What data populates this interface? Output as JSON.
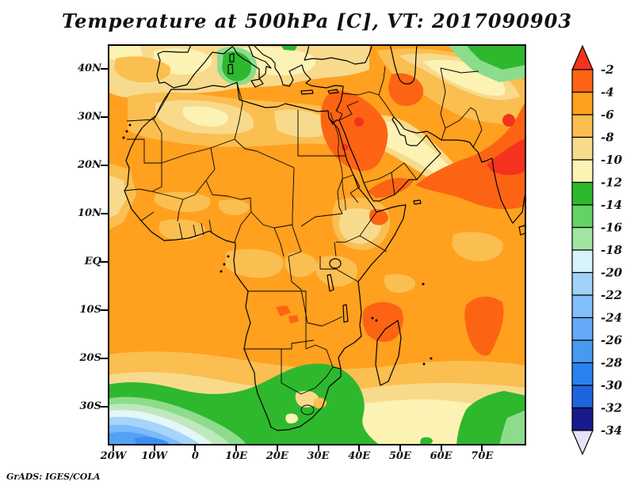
{
  "title": "Temperature at 500hPa [C], VT: 2017090903",
  "credit": "GrADS: IGES/COLA",
  "map": {
    "y_tick_labels": [
      "40N",
      "30N",
      "20N",
      "10N",
      "EQ",
      "10S",
      "20S",
      "30S"
    ],
    "x_tick_labels": [
      "20W",
      "10W",
      "0",
      "10E",
      "20E",
      "30E",
      "40E",
      "50E",
      "60E",
      "70E"
    ]
  },
  "colorbar": {
    "tick_labels": [
      "-2",
      "-4",
      "-6",
      "-8",
      "-10",
      "-12",
      "-14",
      "-16",
      "-18",
      "-20",
      "-22",
      "-24",
      "-26",
      "-28",
      "-30",
      "-32",
      "-34"
    ],
    "top_arrow_color": "#F5321E",
    "bottom_arrow_color": "#E6E2F8",
    "segment_colors": [
      "#FC6414",
      "#FFA01E",
      "#FBBE50",
      "#F8DA8C",
      "#FCF2B4",
      "#2EB82E",
      "#64D264",
      "#A0E6A0",
      "#D8F2FA",
      "#A0D2FA",
      "#82BEFA",
      "#64AAF8",
      "#469BF0",
      "#2882F0",
      "#1E64DC",
      "#1A1A8C"
    ]
  },
  "chart_data": {
    "type": "heatmap",
    "title": "Temperature at 500hPa [C], VT: 2017090903",
    "variable": "Temperature at 500hPa",
    "units": "C",
    "valid_time": "2017090903",
    "region": "Africa, Middle East, southern Europe, Arabian Sea / India and surrounding oceans",
    "x_axis": {
      "label": "longitude",
      "ticks": [
        "20W",
        "10W",
        "0",
        "10E",
        "20E",
        "30E",
        "40E",
        "50E",
        "60E",
        "70E"
      ],
      "range_deg": [
        -21,
        81
      ]
    },
    "y_axis": {
      "label": "latitude",
      "ticks": [
        "40N",
        "30N",
        "20N",
        "10N",
        "EQ",
        "10S",
        "20S",
        "30S"
      ],
      "range_deg": [
        -38,
        45
      ]
    },
    "legend_position": "right",
    "grid": false,
    "contour_interval": 2,
    "levels_c": [
      -2,
      -4,
      -6,
      -8,
      -10,
      -12,
      -14,
      -16,
      -18,
      -20,
      -22,
      -24,
      -26,
      -28,
      -30,
      -32,
      -34
    ],
    "palette": [
      {
        "range": "> -2",
        "color": "#F5321E"
      },
      {
        "range": "-4 to -2",
        "color": "#FC6414"
      },
      {
        "range": "-6 to -4",
        "color": "#FFA01E"
      },
      {
        "range": "-8 to -6",
        "color": "#FBBE50"
      },
      {
        "range": "-10 to -8",
        "color": "#F8DA8C"
      },
      {
        "range": "-12 to -10",
        "color": "#FCF2B4"
      },
      {
        "range": "-14 to -12",
        "color": "#2EB82E"
      },
      {
        "range": "-16 to -14",
        "color": "#64D264"
      },
      {
        "range": "-18 to -16",
        "color": "#A0E6A0"
      },
      {
        "range": "-20 to -18",
        "color": "#D8F2FA"
      },
      {
        "range": "-22 to -20",
        "color": "#A0D2FA"
      },
      {
        "range": "-24 to -22",
        "color": "#82BEFA"
      },
      {
        "range": "-26 to -24",
        "color": "#64AAF8"
      },
      {
        "range": "-28 to -26",
        "color": "#469BF0"
      },
      {
        "range": "-30 to -28",
        "color": "#2882F0"
      },
      {
        "range": "-32 to -30",
        "color": "#1E64DC"
      },
      {
        "range": "-34 to -32",
        "color": "#1A1A8C"
      },
      {
        "range": "< -34",
        "color": "#E6E2F8"
      }
    ],
    "features": [
      "Warm core (-2 to -4 C, small spots above -2 C) over Egypt and the eastern Mediterranean / Levant",
      "Large warm area (-2 to -4 C with > -2 C core) over the Arabian Sea and northwest India",
      "Warm patch (-2 to -4 C) over northern Madagascar and the Mozambique Channel",
      "Warm patch (-2 to -4 C) in the southern Indian Ocean near 60E 15S",
      "Background field mostly -4 to -6 C over tropical Africa and the oceans",
      "-8 to -12 C band over the Sahara, Mediterranean, Iberia, Iraq and Iran",
      "Cool patch (-12 to -16 C) over southern Italy and the central Mediterranean",
      "Cool area (-12 to -16 C) along the northeast corner near the Caspian region",
      "Cool band (-12 to -18 C) across the Southern Ocean south of 30S and over western South Africa",
      "Cold pool (-18 to -28 C) southwest of South Africa near 33S 10W",
      "Cool green patch (-12 to -16 C) in the far southeast corner of the domain"
    ]
  }
}
